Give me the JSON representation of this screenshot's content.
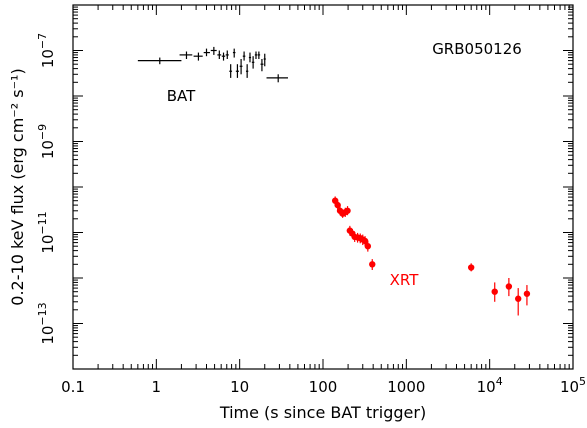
{
  "chart_data": {
    "type": "scatter",
    "title": "GRB050126",
    "xlabel": "Time (s since BAT trigger)",
    "ylabel": "0.2-10 keV flux (erg cm⁻² s⁻¹)",
    "x_scale": "log",
    "y_scale": "log",
    "xlim": [
      0.1,
      100000
    ],
    "ylim": [
      1e-14,
      1e-06
    ],
    "x_ticks": [
      {
        "value": 0.1,
        "label": "0.1"
      },
      {
        "value": 1,
        "label": "1"
      },
      {
        "value": 10,
        "label": "10"
      },
      {
        "value": 100,
        "label": "100"
      },
      {
        "value": 1000,
        "label": "1000"
      },
      {
        "value": 10000,
        "label": "10",
        "exp": "4"
      },
      {
        "value": 100000,
        "label": "10",
        "exp": "5"
      }
    ],
    "y_ticks": [
      {
        "value": 1e-07,
        "label": "10",
        "exp": "−7"
      },
      {
        "value": 1e-09,
        "label": "10",
        "exp": "−9"
      },
      {
        "value": 1e-11,
        "label": "10",
        "exp": "−11"
      },
      {
        "value": 1e-13,
        "label": "10",
        "exp": "−13"
      }
    ],
    "grid": false,
    "series": [
      {
        "name": "BAT",
        "color": "#000000",
        "marker": "cross",
        "points": [
          {
            "x": 1.1,
            "y": 6e-08,
            "xlo": 0.6,
            "xhi": 2.0,
            "ylo": 5e-08,
            "yhi": 7e-08
          },
          {
            "x": 2.3,
            "y": 8e-08,
            "xlo": 1.9,
            "xhi": 2.7,
            "ylo": 6.5e-08,
            "yhi": 9.5e-08
          },
          {
            "x": 3.2,
            "y": 7.5e-08,
            "xlo": 2.8,
            "xhi": 3.6,
            "ylo": 6e-08,
            "yhi": 9e-08
          },
          {
            "x": 4.0,
            "y": 9e-08,
            "xlo": 3.7,
            "xhi": 4.4,
            "ylo": 7.5e-08,
            "yhi": 1.1e-07
          },
          {
            "x": 4.9,
            "y": 1e-07,
            "xlo": 4.5,
            "xhi": 5.3,
            "ylo": 8e-08,
            "yhi": 1.2e-07
          },
          {
            "x": 5.7,
            "y": 8e-08,
            "xlo": 5.4,
            "xhi": 6.0,
            "ylo": 6.5e-08,
            "yhi": 1e-07
          },
          {
            "x": 6.4,
            "y": 7.5e-08,
            "xlo": 6.1,
            "xhi": 6.7,
            "ylo": 6e-08,
            "yhi": 9e-08
          },
          {
            "x": 7.1,
            "y": 8e-08,
            "xlo": 6.8,
            "xhi": 7.4,
            "ylo": 6.5e-08,
            "yhi": 1e-07
          },
          {
            "x": 7.8,
            "y": 3.5e-08,
            "xlo": 7.5,
            "xhi": 8.1,
            "ylo": 2.5e-08,
            "yhi": 5e-08
          },
          {
            "x": 8.6,
            "y": 9e-08,
            "xlo": 8.3,
            "xhi": 8.9,
            "ylo": 7e-08,
            "yhi": 1.1e-07
          },
          {
            "x": 9.4,
            "y": 3.5e-08,
            "xlo": 9.0,
            "xhi": 9.8,
            "ylo": 2.5e-08,
            "yhi": 5e-08
          },
          {
            "x": 10.4,
            "y": 4.5e-08,
            "xlo": 10.0,
            "xhi": 10.8,
            "ylo": 3e-08,
            "yhi": 6.5e-08
          },
          {
            "x": 11.3,
            "y": 7.5e-08,
            "xlo": 10.9,
            "xhi": 11.7,
            "ylo": 6e-08,
            "yhi": 9.5e-08
          },
          {
            "x": 12.3,
            "y": 3.5e-08,
            "xlo": 11.9,
            "xhi": 12.7,
            "ylo": 2.5e-08,
            "yhi": 5e-08
          },
          {
            "x": 13.3,
            "y": 7e-08,
            "xlo": 12.9,
            "xhi": 13.7,
            "ylo": 5.5e-08,
            "yhi": 9e-08
          },
          {
            "x": 14.5,
            "y": 5.5e-08,
            "xlo": 14.0,
            "xhi": 15.0,
            "ylo": 4e-08,
            "yhi": 7.5e-08
          },
          {
            "x": 15.7,
            "y": 8e-08,
            "xlo": 15.2,
            "xhi": 16.2,
            "ylo": 6.5e-08,
            "yhi": 9.5e-08
          },
          {
            "x": 17.0,
            "y": 8e-08,
            "xlo": 16.4,
            "xhi": 17.6,
            "ylo": 6.5e-08,
            "yhi": 9.5e-08
          },
          {
            "x": 18.5,
            "y": 5e-08,
            "xlo": 17.8,
            "xhi": 19.3,
            "ylo": 3.5e-08,
            "yhi": 6.5e-08
          },
          {
            "x": 20.0,
            "y": 6.5e-08,
            "xlo": 19.4,
            "xhi": 20.6,
            "ylo": 4.5e-08,
            "yhi": 8.5e-08
          },
          {
            "x": 29.0,
            "y": 2.5e-08,
            "xlo": 21.0,
            "xhi": 38.0,
            "ylo": 2e-08,
            "yhi": 3e-08
          }
        ]
      },
      {
        "name": "XRT",
        "color": "#ff0000",
        "marker": "dot",
        "points": [
          {
            "x": 140,
            "y": 5e-11,
            "ylo": 4e-11,
            "yhi": 6.2e-11
          },
          {
            "x": 150,
            "y": 4e-11,
            "ylo": 3.2e-11,
            "yhi": 5e-11
          },
          {
            "x": 160,
            "y": 3e-11,
            "ylo": 2.4e-11,
            "yhi": 3.8e-11
          },
          {
            "x": 172,
            "y": 2.6e-11,
            "ylo": 2.1e-11,
            "yhi": 3.2e-11
          },
          {
            "x": 185,
            "y": 2.8e-11,
            "ylo": 2.2e-11,
            "yhi": 3.5e-11
          },
          {
            "x": 197,
            "y": 3e-11,
            "ylo": 2.4e-11,
            "yhi": 3.8e-11
          },
          {
            "x": 210,
            "y": 1.1e-11,
            "ylo": 8.5e-12,
            "yhi": 1.4e-11
          },
          {
            "x": 225,
            "y": 9.5e-12,
            "ylo": 7.5e-12,
            "yhi": 1.2e-11
          },
          {
            "x": 240,
            "y": 8e-12,
            "ylo": 6.2e-12,
            "yhi": 1e-11
          },
          {
            "x": 260,
            "y": 7.8e-12,
            "ylo": 6e-12,
            "yhi": 9.8e-12
          },
          {
            "x": 280,
            "y": 7.5e-12,
            "ylo": 5.8e-12,
            "yhi": 9.5e-12
          },
          {
            "x": 300,
            "y": 7e-12,
            "ylo": 5.3e-12,
            "yhi": 9e-12
          },
          {
            "x": 320,
            "y": 6.5e-12,
            "ylo": 5e-12,
            "yhi": 8.3e-12
          },
          {
            "x": 345,
            "y": 5e-12,
            "ylo": 3.8e-12,
            "yhi": 6.5e-12
          },
          {
            "x": 390,
            "y": 2e-12,
            "ylo": 1.5e-12,
            "yhi": 2.6e-12
          },
          {
            "x": 6000,
            "y": 1.7e-12,
            "ylo": 1.4e-12,
            "yhi": 2.1e-12
          },
          {
            "x": 11500,
            "y": 5e-13,
            "ylo": 3e-13,
            "yhi": 8e-13
          },
          {
            "x": 17000,
            "y": 6.5e-13,
            "ylo": 4e-13,
            "yhi": 1e-12
          },
          {
            "x": 22000,
            "y": 3.5e-13,
            "ylo": 1.5e-13,
            "yhi": 6e-13
          },
          {
            "x": 28000,
            "y": 4.5e-13,
            "ylo": 2.5e-13,
            "yhi": 7e-13
          }
        ]
      }
    ],
    "annotations": [
      {
        "text": "GRB050126",
        "color": "#000000",
        "role": "title"
      },
      {
        "text": "BAT",
        "color": "#000000",
        "role": "series-label",
        "series": "BAT"
      },
      {
        "text": "XRT",
        "color": "#ff0000",
        "role": "series-label",
        "series": "XRT"
      }
    ]
  }
}
